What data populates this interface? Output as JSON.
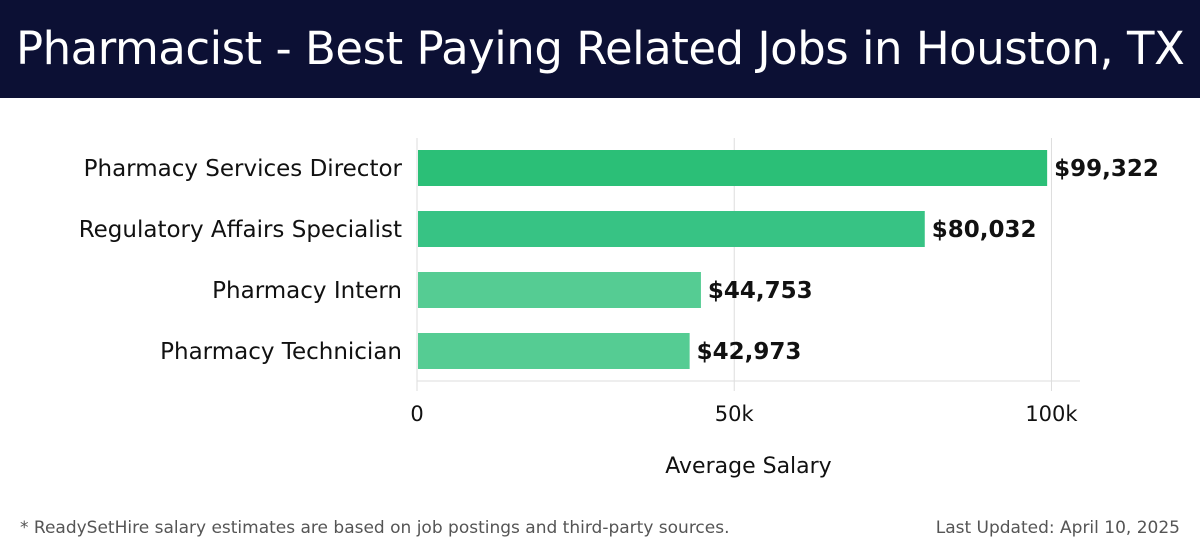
{
  "header": {
    "title": "Pharmacist - Best Paying Related Jobs in Houston, TX"
  },
  "colors": {
    "header_bg": "#0c1034",
    "bar_colors": [
      "#2bbf77",
      "#37c384",
      "#55cc93",
      "#55cc93"
    ],
    "grid": "#dddddd"
  },
  "chart_data": {
    "type": "bar",
    "orientation": "horizontal",
    "categories": [
      "Pharmacy Services Director",
      "Regulatory Affairs Specialist",
      "Pharmacy Intern",
      "Pharmacy Technician"
    ],
    "values": [
      99322,
      80032,
      44753,
      42973
    ],
    "value_labels": [
      "$99,322",
      "$80,032",
      "$44,753",
      "$42,973"
    ],
    "xlabel": "Average Salary",
    "xlim": [
      0,
      104500
    ],
    "ticks": [
      0,
      50000,
      100000
    ],
    "tick_labels": [
      "0",
      "50k",
      "100k"
    ],
    "grid": true,
    "legend": "none"
  },
  "footer": {
    "note": "* ReadySetHire salary estimates are based on job postings and third-party sources.",
    "updated": "Last Updated: April 10, 2025"
  }
}
